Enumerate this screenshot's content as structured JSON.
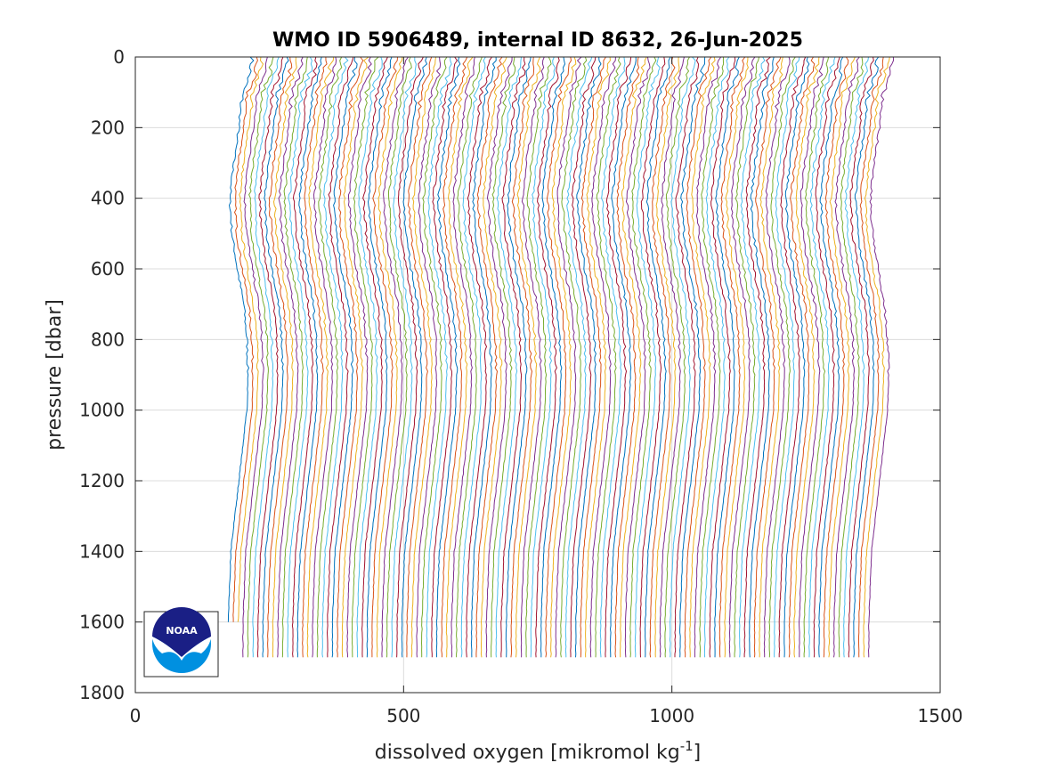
{
  "chart_data": {
    "type": "line",
    "title": "WMO ID 5906489, internal ID 8632, 26-Jun-2025",
    "xlabel": "dissolved oxygen [mikromol kg",
    "xlabel_superscript": "-1",
    "xlabel_suffix": "]",
    "ylabel": "pressure [dbar]",
    "xlim": [
      0,
      1500
    ],
    "ylim": [
      0,
      1800
    ],
    "y_reversed": true,
    "xticks": [
      0,
      500,
      1000,
      1500
    ],
    "xtick_labels": [
      "0",
      "500",
      "1000",
      "1500"
    ],
    "yticks": [
      0,
      200,
      400,
      600,
      800,
      1000,
      1200,
      1400,
      1600,
      1800
    ],
    "ytick_labels": [
      "0",
      "200",
      "400",
      "600",
      "800",
      "1000",
      "1200",
      "1400",
      "1600",
      "1800"
    ],
    "grid": true,
    "colors": [
      "#0072BD",
      "#D95319",
      "#EDB120",
      "#7E2F8E",
      "#77AC30",
      "#4DBEEE",
      "#A2142F"
    ],
    "profile_count": 130,
    "profile_shape": {
      "pressure": [
        0,
        50,
        100,
        150,
        200,
        300,
        400,
        500,
        600,
        700,
        800,
        900,
        1000,
        1200,
        1400,
        1600,
        1700
      ],
      "offset": [
        0,
        -5,
        -18,
        -22,
        -25,
        -35,
        -42,
        -38,
        -28,
        -16,
        -10,
        -8,
        -10,
        -25,
        -40,
        -45,
        -45
      ]
    },
    "profile_start_offsets": {
      "first_start": 218,
      "last_start": 1412,
      "stagger_note": "profiles are cumulatively offset along the x-axis"
    }
  },
  "logo": {
    "text": "NOAA",
    "name": "noaa-logo"
  }
}
